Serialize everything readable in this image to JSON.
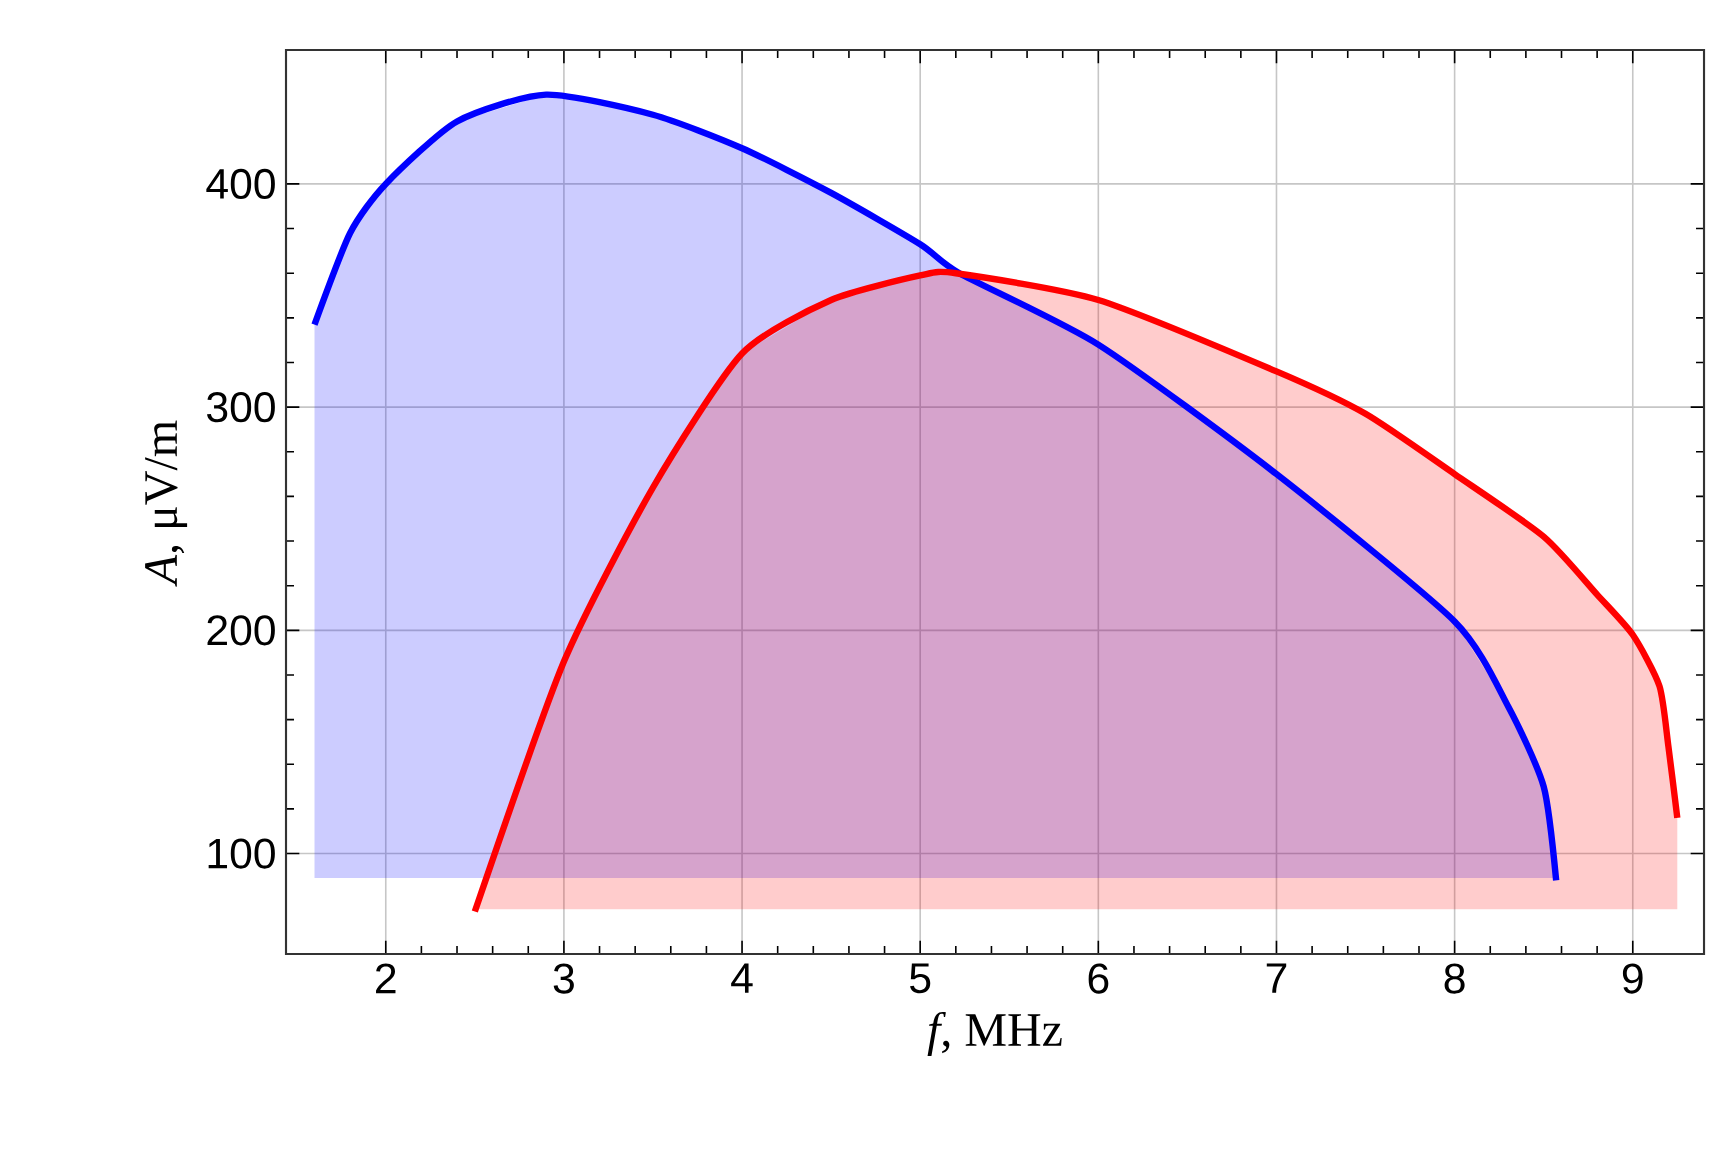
{
  "chart_data": {
    "type": "line",
    "xlabel": "*f*, MHz",
    "ylabel": "*A*, μV/m",
    "xlim": [
      1.44,
      9.4
    ],
    "ylim": [
      55,
      460
    ],
    "xticks": [
      2,
      3,
      4,
      5,
      6,
      7,
      8,
      9
    ],
    "yticks": [
      100,
      200,
      300,
      400
    ],
    "grid": true,
    "marker": "none",
    "line_style": "solid",
    "series": [
      {
        "color": "#0000ff",
        "x": [
          1.6,
          1.8,
          2,
          2.4,
          2.9,
          3.5,
          4,
          4.5,
          5,
          5.22,
          6,
          7,
          8,
          8.3,
          8.5,
          8.57
        ],
        "values": [
          337,
          378,
          400,
          428,
          440,
          431,
          416,
          396,
          373,
          360,
          328,
          270,
          204,
          166,
          130,
          88
        ],
        "upper": [
          337,
          378,
          400,
          428,
          440,
          431,
          416,
          396,
          373,
          360,
          328,
          270,
          204,
          166,
          130,
          88
        ],
        "lower": [
          89,
          89,
          89,
          89,
          89,
          89,
          89,
          89,
          89,
          89,
          89,
          89,
          89,
          89,
          89,
          89
        ]
      },
      {
        "color": "#ff0000",
        "x": [
          2.5,
          3,
          3.5,
          4,
          4.5,
          5,
          5.2,
          6,
          7,
          7.5,
          8,
          8.5,
          8.8,
          9,
          9.15,
          9.2,
          9.25
        ],
        "values": [
          74,
          186,
          264,
          324,
          348,
          359,
          360,
          348,
          316,
          297,
          270,
          242,
          216,
          198,
          175,
          148,
          116
        ],
        "upper": [
          75,
          186,
          264,
          324,
          348,
          359,
          360,
          348,
          316,
          297,
          270,
          242,
          216,
          198,
          175,
          148,
          116
        ],
        "lower": [
          75,
          75,
          75,
          75,
          75,
          75,
          75,
          75,
          75,
          75,
          75,
          75,
          75,
          75,
          75,
          75,
          75
        ]
      }
    ]
  }
}
